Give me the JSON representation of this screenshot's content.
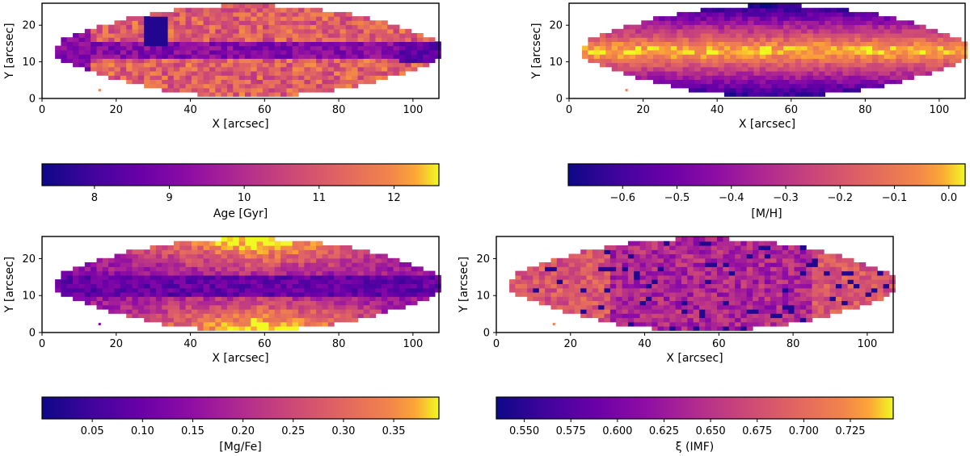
{
  "figure_title": "",
  "chart_data": [
    {
      "type": "heatmap",
      "name": "age",
      "title": "",
      "xlabel": "X [arcsec]",
      "ylabel": "Y [arcsec]",
      "xlim": [
        0,
        107
      ],
      "ylim": [
        0,
        26
      ],
      "xticks": [
        0,
        20,
        40,
        60,
        80,
        100
      ],
      "yticks": [
        0,
        10,
        20
      ],
      "colorbar": {
        "label": "Age [Gyr]",
        "range": [
          7.3,
          12.6
        ],
        "ticks": [
          8,
          9,
          10,
          11,
          12
        ],
        "tick_labels": [
          "8",
          "9",
          "10",
          "11",
          "12"
        ],
        "colormap": "plasma"
      },
      "map_pattern": "inner dark midplane band with dark knots near x≈30 and x≈100; outer envelope warm, yellow patches near x≈42, 82, 91"
    },
    {
      "type": "heatmap",
      "name": "metallicity",
      "title": "",
      "xlabel": "X [arcsec]",
      "ylabel": "Y [arcsec]",
      "xlim": [
        0,
        107
      ],
      "ylim": [
        0,
        26
      ],
      "xticks": [
        0,
        20,
        40,
        60,
        80,
        100
      ],
      "yticks": [
        0,
        10,
        20
      ],
      "colorbar": {
        "label": "[M/H]",
        "range": [
          -0.7,
          0.03
        ],
        "ticks": [
          -0.6,
          -0.5,
          -0.4,
          -0.3,
          -0.2,
          -0.1,
          0.0
        ],
        "tick_labels": [
          "−0.6",
          "−0.5",
          "−0.4",
          "−0.3",
          "−0.2",
          "−0.1",
          "0.0"
        ],
        "colormap": "plasma"
      },
      "map_pattern": "metal-rich yellow midplane, metal-poor dark purple at top and bottom of the disk"
    },
    {
      "type": "heatmap",
      "name": "alpha",
      "title": "",
      "xlabel": "X [arcsec]",
      "ylabel": "Y [arcsec]",
      "xlim": [
        0,
        107
      ],
      "ylim": [
        0,
        26
      ],
      "xticks": [
        0,
        20,
        40,
        60,
        80,
        100
      ],
      "yticks": [
        0,
        10,
        20
      ],
      "colorbar": {
        "label": "[Mg/Fe]",
        "range": [
          0.0,
          0.395
        ],
        "ticks": [
          0.05,
          0.1,
          0.15,
          0.2,
          0.25,
          0.3,
          0.35
        ],
        "tick_labels": [
          "0.05",
          "0.10",
          "0.15",
          "0.20",
          "0.25",
          "0.30",
          "0.35"
        ],
        "colormap": "plasma"
      },
      "map_pattern": "low [Mg/Fe] dark midplane, high [Mg/Fe] yellow above and below the center"
    },
    {
      "type": "heatmap",
      "name": "imf",
      "title": "",
      "xlabel": "X [arcsec]",
      "ylabel": "Y [arcsec]",
      "xlim": [
        0,
        107
      ],
      "ylim": [
        0,
        26
      ],
      "xticks": [
        0,
        20,
        40,
        60,
        80,
        100
      ],
      "yticks": [
        0,
        10,
        20
      ],
      "colorbar": {
        "label": "ξ (IMF)",
        "range": [
          0.535,
          0.748
        ],
        "ticks": [
          0.55,
          0.575,
          0.6,
          0.625,
          0.65,
          0.675,
          0.7,
          0.725
        ],
        "tick_labels": [
          "0.550",
          "0.575",
          "0.600",
          "0.625",
          "0.650",
          "0.675",
          "0.700",
          "0.725"
        ],
        "colormap": "plasma"
      },
      "map_pattern": "mottled purple/magenta, orange along outer ends of the disk"
    }
  ]
}
